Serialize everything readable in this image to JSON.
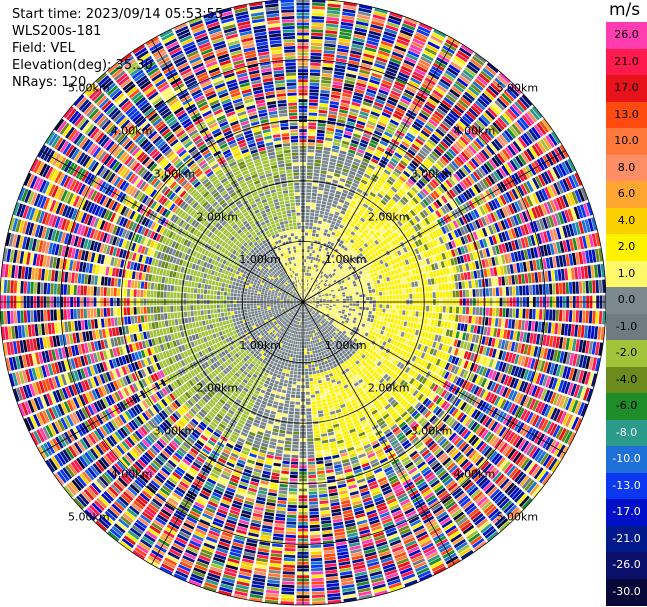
{
  "header": {
    "start_time": "Start time: 2023/09/14 05:53:55",
    "instrument": "WLS200s-181",
    "field": "Field: VEL",
    "elevation": "Elevation(deg): 35.30",
    "nrays": "NRays: 120"
  },
  "colorbar": {
    "unit": "m/s",
    "ticks": [
      "26.0",
      "21.0",
      "17.0",
      "13.0",
      "10.0",
      "8.0",
      "6.0",
      "4.0",
      "2.0",
      "1.0",
      "0.0",
      "-1.0",
      "-2.0",
      "-4.0",
      "-6.0",
      "-8.0",
      "-10.0",
      "-13.0",
      "-17.0",
      "-21.0",
      "-26.0",
      "-30.0"
    ],
    "colors": [
      "#ff3db0",
      "#ff1a4d",
      "#e8121b",
      "#ff4a10",
      "#ff7a3a",
      "#ff8e66",
      "#ffa630",
      "#fcd000",
      "#fff200",
      "#fff86a",
      "#7c8a90",
      "#6e7b80",
      "#a2c43a",
      "#6b8c1c",
      "#1f8c2a",
      "#2a9a8a",
      "#1f6fd8",
      "#0b38f0",
      "#0010c8",
      "#001a8c",
      "#0a0f6a",
      "#080838"
    ]
  },
  "chart_data": {
    "type": "ppi",
    "field": "VEL",
    "units": "m/s",
    "elevation_deg": 35.3,
    "n_rays": 120,
    "range_labels": [
      "1.00km",
      "2.00km",
      "3.00km",
      "4.00km",
      "5.00km"
    ],
    "range_ring_km": [
      1,
      2,
      3,
      4,
      5
    ],
    "max_range_km": 5.0,
    "azimuth_lines_deg": [
      0,
      30,
      60,
      90,
      120,
      150,
      180,
      210,
      240,
      270,
      300,
      330
    ],
    "vmin": -30.0,
    "vmax": 26.0
  }
}
